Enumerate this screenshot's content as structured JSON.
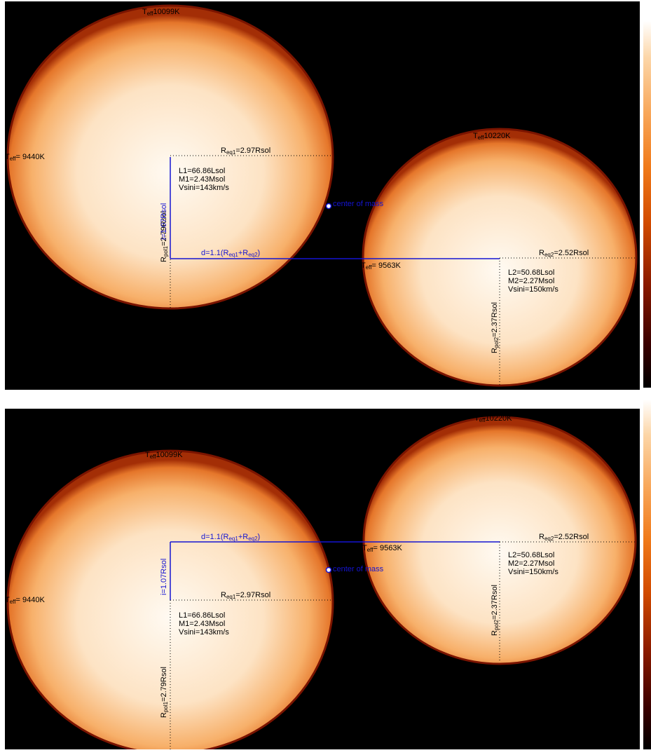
{
  "panels": [
    {
      "star1": {
        "teff_top": "10099K",
        "teff_left": "9440K",
        "r_eq": "=2.97Rsol",
        "r_pol": "=2.79Rsol",
        "params": [
          "L1=66.86Lsol",
          "M1=2.43Msol",
          "Vsini=143km/s"
        ]
      },
      "star2": {
        "teff_top": "10220K",
        "teff_left": "9563K",
        "r_eq": "=2.52Rsol",
        "r_pol": "=2.37Rsol",
        "params": [
          "L2=50.68Lsol",
          "M2=2.27Msol",
          "Vsini=150km/s"
        ]
      },
      "separation": "d=1.1(R",
      "center_of_mass": "center of mass",
      "inclination": "i=1.07Rsol"
    },
    {
      "star1": {
        "teff_top": "10099K",
        "teff_left": "9440K",
        "r_eq": "=2.97Rsol",
        "r_pol": "=2.79Rsol",
        "params": [
          "L1=66.86Lsol",
          "M1=2.43Msol",
          "Vsini=143km/s"
        ]
      },
      "star2": {
        "teff_top": "10220K",
        "teff_left": "9563K",
        "r_eq": "=2.52Rsol",
        "r_pol": "=2.37Rsol",
        "params": [
          "L2=50.68Lsol",
          "M2=2.27Msol",
          "Vsini=150km/s"
        ]
      },
      "separation": "d=1.1(R",
      "center_of_mass": "center of mass",
      "inclination": "i=1.07Rsol"
    }
  ],
  "colors": {
    "background": "#000000",
    "star_core": "#fffaf2",
    "star_limb": "#e07020",
    "star_edge": "#8a1a00",
    "annotation": "#1414d2"
  }
}
